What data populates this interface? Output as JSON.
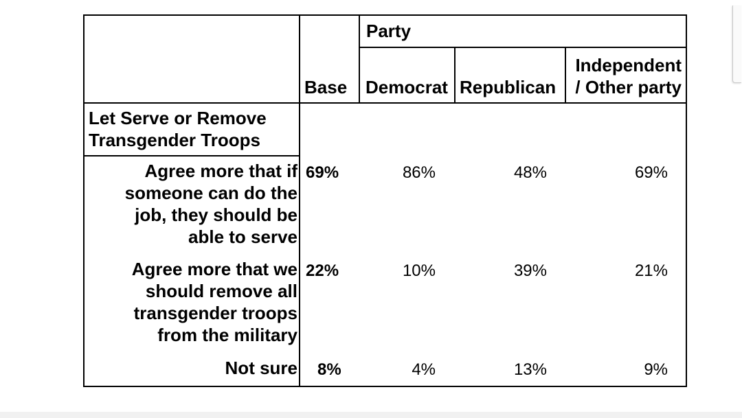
{
  "header": {
    "group_label": "Party",
    "base_label": "Base",
    "columns": [
      "Democrat",
      "Republican",
      "Independent / Other party"
    ],
    "col3_line1": "Independent",
    "col3_line2": "/ Other party"
  },
  "section": {
    "title_line1": "Let Serve or Remove",
    "title_line2": "Transgender Troops"
  },
  "rows": [
    {
      "label_lines": [
        "Agree more that if",
        "someone can do the",
        "job, they should be",
        "able to serve"
      ],
      "base": "69%",
      "democrat": "86%",
      "republican": "48%",
      "independent": "69%"
    },
    {
      "label_lines": [
        "Agree more that we",
        "should remove all",
        "transgender troops",
        "from the military"
      ],
      "base": "22%",
      "democrat": "10%",
      "republican": "39%",
      "independent": "21%"
    },
    {
      "label_lines": [
        "Not sure"
      ],
      "base": "8%",
      "democrat": "4%",
      "republican": "13%",
      "independent": "9%"
    }
  ]
}
